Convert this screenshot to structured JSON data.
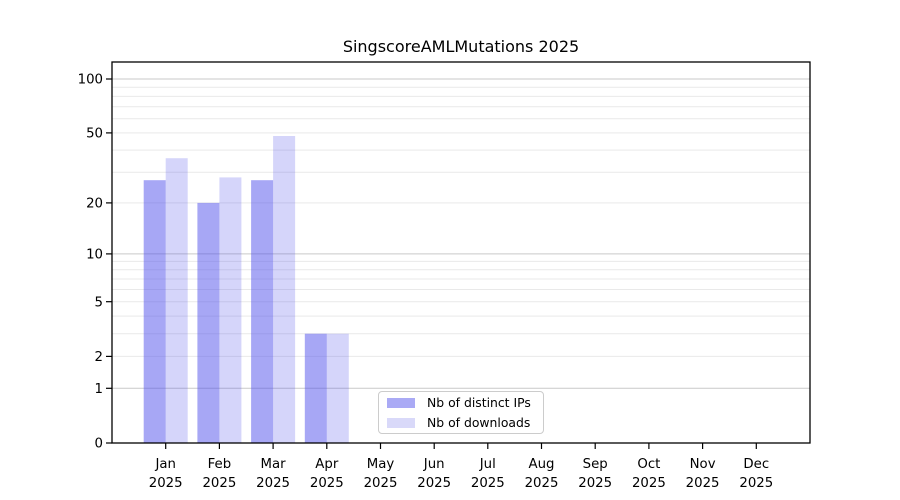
{
  "chart_data": {
    "type": "bar",
    "title": "SingscoreAMLMutations 2025",
    "categories": [
      "Jan",
      "Feb",
      "Mar",
      "Apr",
      "May",
      "Jun",
      "Jul",
      "Aug",
      "Sep",
      "Oct",
      "Nov",
      "Dec"
    ],
    "year_label": "2025",
    "series": [
      {
        "name": "Nb of distinct IPs",
        "color_hex": "#aaaaf5",
        "fill_rgba": "rgba(80,80,236,0.5)",
        "values": [
          27,
          20,
          27,
          3,
          0,
          0,
          0,
          0,
          0,
          0,
          0,
          0
        ]
      },
      {
        "name": "Nb of downloads",
        "color_hex": "#d9d9f9",
        "fill_rgba": "rgba(80,80,236,0.24)",
        "values": [
          36,
          28,
          48,
          3,
          0,
          0,
          0,
          0,
          0,
          0,
          0,
          0
        ]
      }
    ],
    "yscale": "log1p",
    "yticks": [
      0,
      1,
      2,
      5,
      10,
      20,
      50,
      100
    ],
    "ylim": [
      0,
      128
    ],
    "grid": {
      "on": true,
      "major_at": [
        1,
        10,
        100
      ],
      "major_color": "#c9c9c9",
      "minor_color": "#e9e9e9"
    },
    "axis_color": "#000000",
    "legend_position": "inside-bottom-center"
  }
}
